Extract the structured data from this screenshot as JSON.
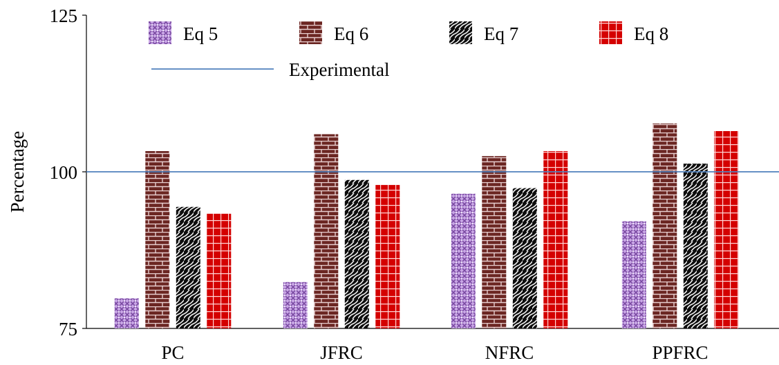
{
  "chart_data": {
    "type": "bar",
    "categories": [
      "PC",
      "JFRC",
      "NFRC",
      "PPFRC"
    ],
    "series": [
      {
        "name": "Eq 5",
        "values": [
          79.8,
          82.4,
          96.5,
          92.1
        ],
        "pattern": "cross-hatch",
        "color": "#8e5fb4"
      },
      {
        "name": "Eq 6",
        "values": [
          103.3,
          106.0,
          102.5,
          107.7
        ],
        "pattern": "brick",
        "color": "#6e2a26"
      },
      {
        "name": "Eq 7",
        "values": [
          94.4,
          98.7,
          97.4,
          101.3
        ],
        "pattern": "diagonal-wave",
        "color": "#111111"
      },
      {
        "name": "Eq 8",
        "values": [
          93.3,
          97.9,
          103.3,
          106.5
        ],
        "pattern": "grid",
        "color": "#d40000"
      }
    ],
    "reference_line": {
      "name": "Experimental",
      "value": 100,
      "color": "#4f81bd"
    },
    "xlabel": "",
    "ylabel": "Percentage",
    "ylim": [
      75,
      125
    ],
    "yticks": [
      75,
      100,
      125
    ],
    "grid": false,
    "legend_position": "top"
  }
}
